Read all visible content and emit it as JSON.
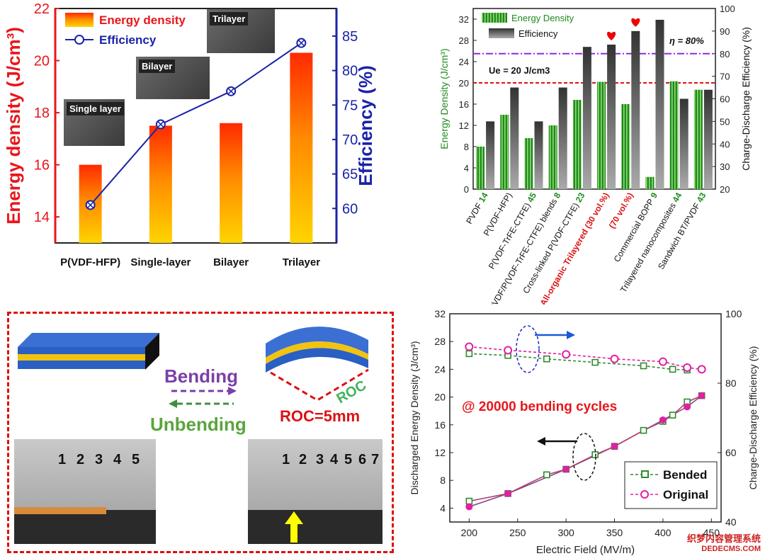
{
  "chart_data": [
    {
      "type": "bar",
      "categories": [
        "P(VDF-HFP)",
        "Single-layer",
        "Bilayer",
        "Trilayer"
      ],
      "series": [
        {
          "name": "Energy density",
          "values": [
            16.0,
            17.5,
            17.6,
            20.3
          ],
          "axis": "left"
        },
        {
          "name": "Efficiency",
          "values": [
            60.5,
            72.2,
            77.0,
            84.0
          ],
          "axis": "right",
          "type": "line"
        }
      ],
      "ylabel": "Energy density (J/cm³)",
      "y2label": "Efficiency (%)",
      "ylim": [
        13,
        22
      ],
      "y2lim": [
        55,
        89
      ],
      "yticks": [
        "14",
        "16",
        "18",
        "20",
        "22"
      ],
      "y2ticks": [
        "60",
        "65",
        "70",
        "75",
        "80",
        "85"
      ],
      "inset_labels": [
        "Single layer",
        "Bilayer",
        "Trilayer"
      ],
      "colors": {
        "energy": "#e8161b",
        "efficiency": "#1a23a8"
      }
    },
    {
      "type": "bar",
      "categories": [
        "PVDF",
        "P(VDF-HFP)",
        "P(VDF-TrFE-CTFE)",
        "PVDF/P(VDF-TrFE-CTFE) blends",
        "Cross-linked P(VDF-CTFE)",
        "All-organic Trilayered (30 vol.%)",
        "(70 vol.%)",
        "Commercial BOPP",
        "Trilayered nanocomposites",
        "Sandwich BT/PVDF"
      ],
      "category_refs": [
        "14",
        "",
        "45",
        "8",
        "23",
        "",
        "",
        "9",
        "44",
        "43"
      ],
      "series": [
        {
          "name": "Energy Density",
          "values": [
            8.0,
            14.0,
            9.6,
            12.0,
            16.8,
            20.2,
            16.0,
            2.3,
            20.3,
            18.7
          ],
          "axis": "left"
        },
        {
          "name": "Efficiency",
          "values": [
            50,
            65,
            50,
            65,
            83,
            84,
            90,
            95,
            60,
            64
          ],
          "axis": "right"
        }
      ],
      "ylabel": "Energy Density (J/cm³)",
      "y2label": "Charge-Discharge Efficiency (%)",
      "ylim": [
        0,
        34
      ],
      "y2lim": [
        20,
        100
      ],
      "yticks": [
        "0",
        "4",
        "8",
        "12",
        "16",
        "20",
        "24",
        "28",
        "32"
      ],
      "y2ticks": [
        "20",
        "30",
        "40",
        "50",
        "60",
        "70",
        "80",
        "90",
        "100"
      ],
      "ue_text": "Ue = 20 J/cm3",
      "eta_text": "η = 80%",
      "ref_lines": {
        "ue": 20,
        "eta": 80
      }
    },
    {
      "type": "line",
      "x": [
        200,
        240,
        280,
        300,
        330,
        350,
        380,
        400,
        410,
        425,
        440
      ],
      "series": [
        {
          "name": "Bended",
          "energy": [
            5.0,
            6.1,
            8.8,
            9.6,
            11.7,
            12.9,
            15.2,
            16.5,
            17.4,
            19.3,
            20.2
          ],
          "efficiency": [
            88.5,
            88.0,
            87.0,
            null,
            86.0,
            null,
            85.0,
            null,
            84.0,
            83.8,
            null
          ]
        },
        {
          "name": "Original",
          "energy": [
            4.2,
            6.1,
            null,
            9.6,
            null,
            12.9,
            null,
            16.7,
            null,
            18.6,
            20.2
          ],
          "efficiency": [
            90.5,
            89.5,
            null,
            88.3,
            null,
            87.0,
            null,
            86.2,
            null,
            84.5,
            84.0
          ]
        }
      ],
      "xlabel": "Electric Field (MV/m)",
      "ylabel": "Discharged Energy Density (J/cm³)",
      "y2label": "Charge-Discharge Efficiency (%)",
      "xlim": [
        180,
        460
      ],
      "ylim": [
        2,
        32
      ],
      "y2lim": [
        40,
        100
      ],
      "xticks": [
        "200",
        "250",
        "300",
        "350",
        "400",
        "450"
      ],
      "yticks": [
        "4",
        "8",
        "12",
        "16",
        "20",
        "24",
        "28",
        "32"
      ],
      "y2ticks": [
        "40",
        "60",
        "80",
        "100"
      ],
      "annotation": "@ 20000 bending cycles"
    }
  ],
  "diagram": {
    "bending": "Bending",
    "unbending": "Unbending",
    "roc": "ROC",
    "roc_value": "ROC=5mm",
    "ruler_left": [
      "1",
      "2",
      "3",
      "4",
      "5"
    ],
    "ruler_right": [
      "1",
      "2",
      "3",
      "4",
      "5",
      "6",
      "7"
    ]
  },
  "watermark": {
    "line1": "织梦内容管理系统",
    "line2": "DEDECMS.COM"
  }
}
